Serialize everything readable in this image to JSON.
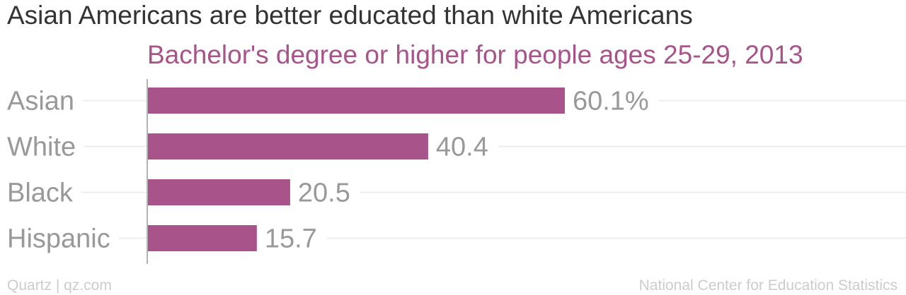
{
  "title": "Asian Americans are better educated than white Americans",
  "subtitle": "Bachelor's degree or higher for people ages 25-29, 2013",
  "footer": {
    "left": "Quartz | qz.com",
    "right": "National Center for Education Statistics"
  },
  "colors": {
    "bar": "#a8548a",
    "category_label": "#999999",
    "value_label": "#999999",
    "gridline": "#eeeeee",
    "axis": "#999999",
    "title": "#333333",
    "subtitle": "#a8548a",
    "footer": "#cccccc"
  },
  "chart_data": {
    "type": "bar",
    "orientation": "horizontal",
    "title": "Asian Americans are better educated than white Americans",
    "subtitle": "Bachelor's degree or higher for people ages 25-29, 2013",
    "categories": [
      "Asian",
      "White",
      "Black",
      "Hispanic"
    ],
    "values": [
      60.1,
      40.4,
      20.5,
      15.7
    ],
    "value_labels": [
      "60.1%",
      "40.4",
      "20.5",
      "15.7"
    ],
    "xlim": [
      0,
      100
    ],
    "grid": true,
    "legend": "none"
  }
}
